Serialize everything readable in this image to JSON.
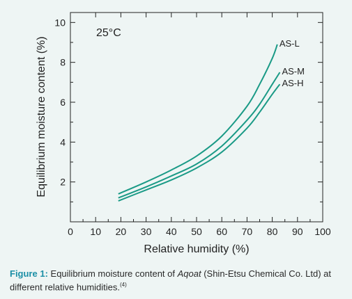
{
  "chart_data": {
    "type": "line",
    "annotation": "25°C",
    "xlabel": "Relative humidity (%)",
    "ylabel": "Equilibrium moisture content (%)",
    "xlim": [
      0,
      100
    ],
    "ylim": [
      0,
      10.5
    ],
    "x_ticks": [
      "0",
      "10",
      "20",
      "30",
      "40",
      "50",
      "60",
      "70",
      "80",
      "90",
      "100"
    ],
    "y_ticks": [
      "2",
      "4",
      "6",
      "8",
      "10"
    ],
    "grid": false,
    "line_color": "#1a9a86",
    "series": [
      {
        "name": "AS-L",
        "x": [
          19,
          30,
          40,
          50,
          60,
          70,
          75,
          80,
          82
        ],
        "y": [
          1.4,
          2.0,
          2.6,
          3.3,
          4.3,
          5.8,
          6.9,
          8.2,
          8.9
        ]
      },
      {
        "name": "AS-M",
        "x": [
          19,
          30,
          40,
          50,
          60,
          70,
          75,
          80,
          83
        ],
        "y": [
          1.2,
          1.75,
          2.3,
          2.9,
          3.8,
          5.1,
          5.9,
          6.9,
          7.5
        ]
      },
      {
        "name": "AS-H",
        "x": [
          19,
          30,
          40,
          50,
          60,
          70,
          75,
          80,
          83
        ],
        "y": [
          1.05,
          1.6,
          2.1,
          2.7,
          3.5,
          4.7,
          5.5,
          6.4,
          6.9
        ]
      }
    ]
  },
  "caption": {
    "label": "Figure 1:",
    "text_before": " Equilibrium moisture content of ",
    "product": "Aqoat",
    "text_after": " (Shin-Etsu Chemical Co. Ltd) at different relative humidities.",
    "ref": "(4)"
  }
}
